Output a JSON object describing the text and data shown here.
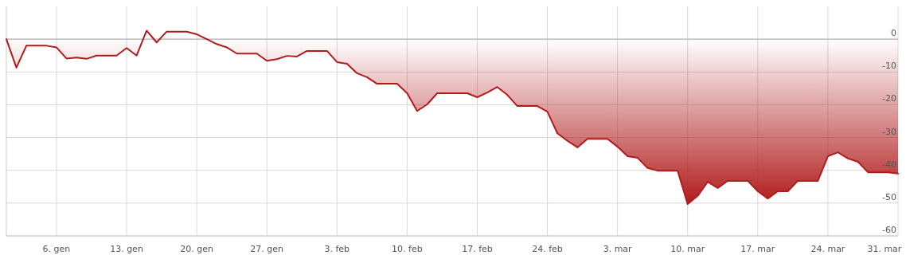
{
  "chart_data": {
    "type": "area",
    "xlim": [
      "--01-01",
      "--03-31"
    ],
    "ylim": [
      -60,
      10
    ],
    "yticks": [
      0,
      -10,
      -20,
      -30,
      -40,
      -50,
      -60
    ],
    "xticks": [
      {
        "value": "--01-06",
        "label": "6. gen"
      },
      {
        "value": "--01-13",
        "label": "13. gen"
      },
      {
        "value": "--01-20",
        "label": "20. gen"
      },
      {
        "value": "--01-27",
        "label": "27. gen"
      },
      {
        "value": "--02-03",
        "label": "3. feb"
      },
      {
        "value": "--02-10",
        "label": "10. feb"
      },
      {
        "value": "--02-17",
        "label": "17. feb"
      },
      {
        "value": "--02-24",
        "label": "24. feb"
      },
      {
        "value": "--03-03",
        "label": "3. mar"
      },
      {
        "value": "--03-10",
        "label": "10. mar"
      },
      {
        "value": "--03-17",
        "label": "17. mar"
      },
      {
        "value": "--03-24",
        "label": "24. mar"
      },
      {
        "value": "--03-31",
        "label": "31. mar"
      }
    ],
    "grid": true,
    "marker": "none",
    "line_style": "solid",
    "series": [
      {
        "color": "#b01c1c",
        "x": [
          "--01-01",
          "--01-02",
          "--01-03",
          "--01-05",
          "--01-06",
          "--01-07",
          "--01-08",
          "--01-09",
          "--01-10",
          "--01-12",
          "--01-13",
          "--01-14",
          "--01-15",
          "--01-16",
          "--01-17",
          "--01-19",
          "--01-20",
          "--01-21",
          "--01-22",
          "--01-23",
          "--01-24",
          "--01-26",
          "--01-27",
          "--01-28",
          "--01-29",
          "--01-30",
          "--01-31",
          "--02-02",
          "--02-03",
          "--02-04",
          "--02-05",
          "--02-06",
          "--02-07",
          "--02-09",
          "--02-10",
          "--02-11",
          "--02-12",
          "--02-13",
          "--02-16",
          "--02-17",
          "--02-18",
          "--02-19",
          "--02-20",
          "--02-21",
          "--02-23",
          "--02-24",
          "--02-25",
          "--02-26",
          "--02-27",
          "--02-28",
          "--03-02",
          "--03-03",
          "--03-04",
          "--03-05",
          "--03-06",
          "--03-07",
          "--03-09",
          "--03-10",
          "--03-11",
          "--03-12",
          "--03-13",
          "--03-14",
          "--03-16",
          "--03-17",
          "--03-18",
          "--03-19",
          "--03-20",
          "--03-21",
          "--03-23",
          "--03-24",
          "--03-25",
          "--03-26",
          "--03-27",
          "--03-28",
          "--03-30",
          "--03-31"
        ],
        "values": [
          0,
          -8.7,
          -2,
          -2,
          -2.5,
          -5.9,
          -5.6,
          -6,
          -5,
          -5,
          -2.7,
          -5,
          2.6,
          -1,
          2.3,
          2.3,
          1.5,
          0,
          -1.5,
          -2.5,
          -4.4,
          -4.4,
          -6.6,
          -6.1,
          -5.1,
          -5.3,
          -3.6,
          -3.6,
          -7,
          -7.5,
          -10.4,
          -11.6,
          -13.6,
          -13.6,
          -16.5,
          -21.9,
          -19.9,
          -16.5,
          -16.5,
          -17.7,
          -16.3,
          -14.6,
          -17,
          -20.4,
          -20.4,
          -22.1,
          -28.7,
          -31,
          -33,
          -30.4,
          -30.4,
          -32.8,
          -35.7,
          -36.2,
          -39.3,
          -40.1,
          -40.1,
          -50.3,
          -47.8,
          -43.5,
          -45.4,
          -43.2,
          -43.2,
          -46.4,
          -48.6,
          -46.4,
          -46.4,
          -43.2,
          -43.2,
          -35.7,
          -34.5,
          -36.4,
          -37.4,
          -40.6,
          -40.6,
          -41
        ]
      }
    ]
  }
}
